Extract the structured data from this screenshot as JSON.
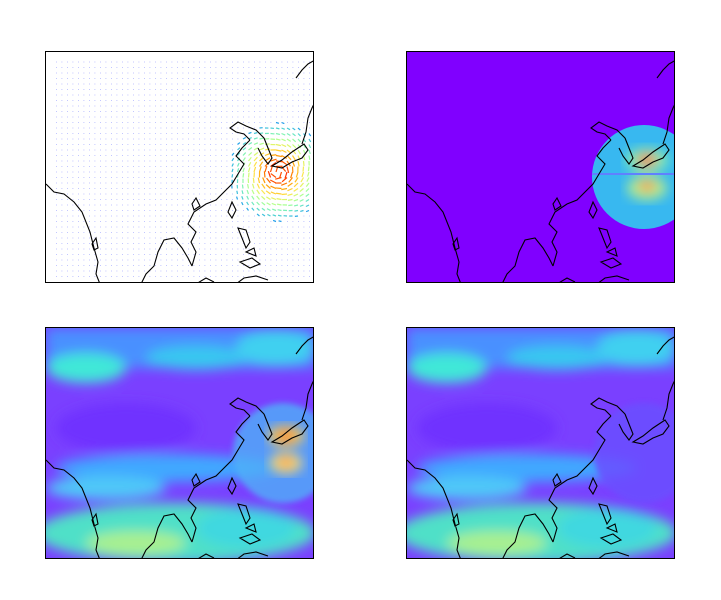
{
  "figure": {
    "colormap": "rainbow",
    "background_color": "#8000ff",
    "coastline_color": "#000000",
    "panels": [
      {
        "id": "wind-vectors",
        "kind": "quiver",
        "vortex": true
      },
      {
        "id": "vortex-speed",
        "kind": "field",
        "vortex": true
      },
      {
        "id": "total-speed",
        "kind": "field",
        "vortex": true
      },
      {
        "id": "background-speed",
        "kind": "field",
        "vortex": false
      }
    ]
  }
}
